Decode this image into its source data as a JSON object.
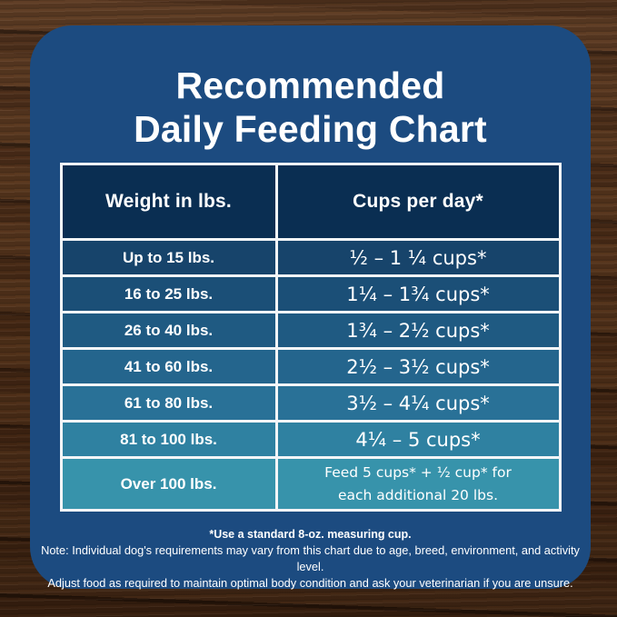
{
  "page": {
    "title_line1": "Recommended",
    "title_line2": "Daily Feeding Chart"
  },
  "colors": {
    "card_bg": "#1c4b80",
    "header_bg": "#0a2e52",
    "table_border": "#f3f5f7",
    "text": "#ffffff"
  },
  "table": {
    "header": {
      "weight": "Weight in lbs.",
      "cups": "Cups per day*"
    },
    "rows": [
      {
        "weight": "Up to 15 lbs.",
        "cups": "½ – 1 ¼ cups*",
        "color": "#17446b"
      },
      {
        "weight": "16 to 25 lbs.",
        "cups": "1¼ – 1¾  cups*",
        "color": "#1b4f77"
      },
      {
        "weight": "26 to 40 lbs.",
        "cups": "1¾ – 2½ cups*",
        "color": "#1f5a82"
      },
      {
        "weight": "41 to 60 lbs.",
        "cups": "2½ – 3½ cups*",
        "color": "#24658d"
      },
      {
        "weight": "61 to 80 lbs.",
        "cups": "3½ – 4¼ cups*",
        "color": "#297197"
      },
      {
        "weight": "81 to 100 lbs.",
        "cups": "4¼ – 5 cups*",
        "color": "#2f81a1"
      },
      {
        "weight": "Over 100 lbs.",
        "cups": "Feed 5 cups*  + ½ cup* for\neach  additional 20 lbs.",
        "color": "#3793ab"
      }
    ]
  },
  "notes": {
    "footnote": "*Use a standard 8-oz. measuring cup.",
    "line1": "Note: Individual dog's requirements may vary from this chart due to age, breed, environment, and activity level.",
    "line2": "Adjust food as required to maintain optimal body condition and ask your veterinarian if you are unsure."
  },
  "chart_data": {
    "type": "table",
    "title": "Recommended Daily Feeding Chart",
    "columns": [
      "Weight in lbs.",
      "Cups per day*"
    ],
    "rows": [
      [
        "Up to 15 lbs.",
        "½ – 1 ¼ cups*"
      ],
      [
        "16 to 25 lbs.",
        "1¼ – 1¾ cups*"
      ],
      [
        "26 to 40 lbs.",
        "1¾ – 2½ cups*"
      ],
      [
        "41 to 60 lbs.",
        "2½ – 3½ cups*"
      ],
      [
        "61 to 80 lbs.",
        "3½ – 4¼ cups*"
      ],
      [
        "81 to 100 lbs.",
        "4¼ – 5 cups*"
      ],
      [
        "Over 100 lbs.",
        "Feed 5 cups* + ½ cup* for each additional 20 lbs."
      ]
    ],
    "footnotes": [
      "*Use a standard 8-oz. measuring cup.",
      "Note: Individual dog's requirements may vary from this chart due to age, breed, environment, and activity level.",
      "Adjust food as required to maintain optimal body condition and ask your veterinarian if you are unsure."
    ],
    "row_colors": [
      "#17446b",
      "#1b4f77",
      "#1f5a82",
      "#24658d",
      "#297197",
      "#2f81a1",
      "#3793ab"
    ],
    "header_color": "#0a2e52"
  }
}
